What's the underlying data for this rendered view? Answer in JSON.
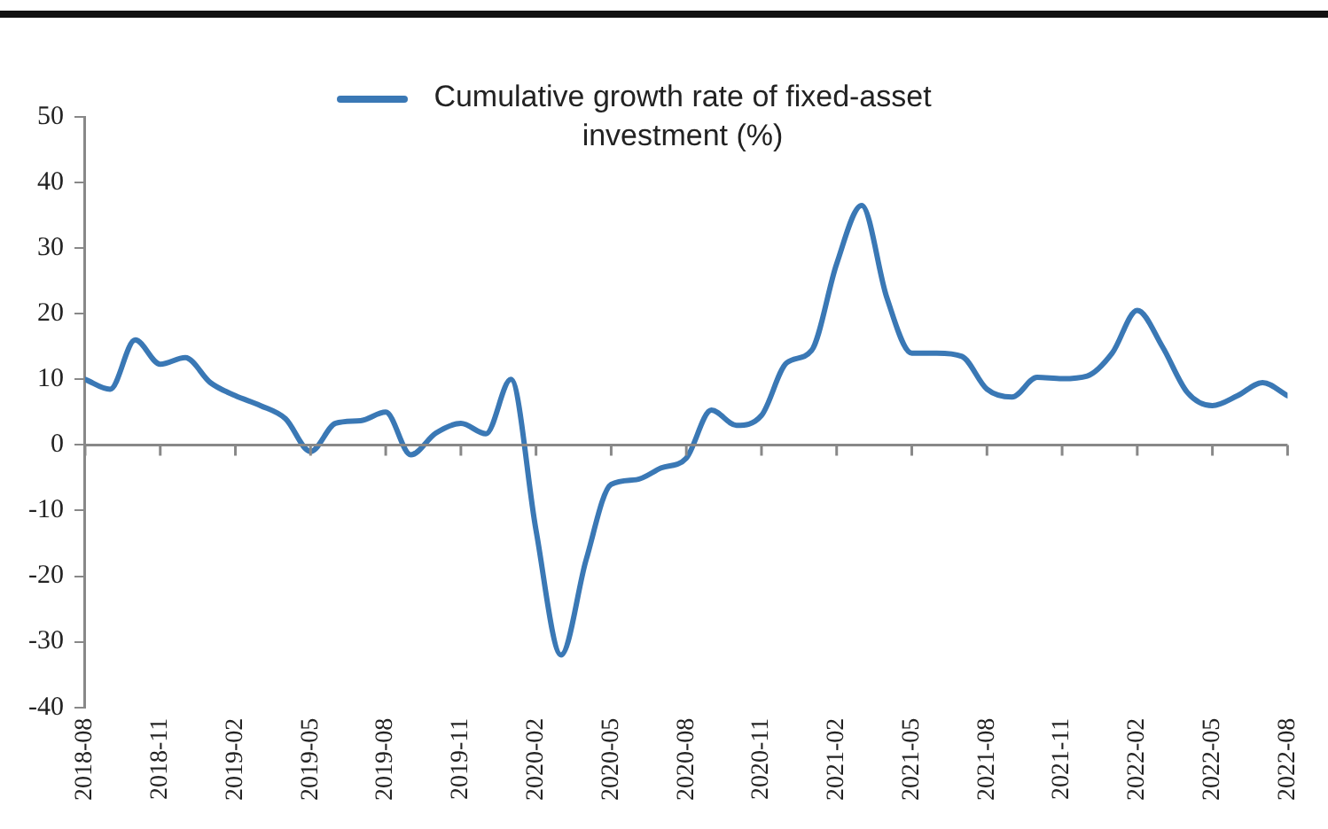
{
  "chart_data": {
    "type": "line",
    "legend": "top",
    "marker": "none",
    "line_style": "solid",
    "grid": false,
    "x": [
      "2018-08",
      "2018-09",
      "2018-10",
      "2018-11",
      "2018-12",
      "2019-01",
      "2019-02",
      "2019-03",
      "2019-04",
      "2019-05",
      "2019-06",
      "2019-07",
      "2019-08",
      "2019-09",
      "2019-10",
      "2019-11",
      "2019-12",
      "2020-01",
      "2020-02",
      "2020-03",
      "2020-04",
      "2020-05",
      "2020-06",
      "2020-07",
      "2020-08",
      "2020-09",
      "2020-10",
      "2020-11",
      "2020-12",
      "2021-01",
      "2021-02",
      "2021-03",
      "2021-04",
      "2021-05",
      "2021-06",
      "2021-07",
      "2021-08",
      "2021-09",
      "2021-10",
      "2021-11",
      "2021-12",
      "2022-01",
      "2022-02",
      "2022-03",
      "2022-04",
      "2022-05",
      "2022-06",
      "2022-07",
      "2022-08"
    ],
    "series": [
      {
        "name": "Cumulative growth rate of fixed-asset investment (%)",
        "color": "#3a78b5",
        "values": [
          10,
          8.5,
          16,
          12.3,
          13.3,
          9.5,
          7.5,
          6,
          4,
          -1,
          3.3,
          3.7,
          5,
          -1.5,
          1.8,
          3.3,
          1.7,
          10,
          -13,
          -32,
          -17.5,
          -6,
          -5.3,
          -3.5,
          -2,
          5.3,
          3,
          4.5,
          12.5,
          14.4,
          27.6,
          36.5,
          22.5,
          14,
          14,
          13.5,
          8.5,
          7.3,
          10.3,
          10.1,
          10.5,
          14,
          20.5,
          15,
          8,
          6,
          7.5,
          9.5,
          7.5
        ]
      }
    ],
    "ref_lines": [
      {
        "axis": "y",
        "value": 0,
        "color": "#888888"
      }
    ],
    "ylim": [
      -40,
      50
    ],
    "yticks": [
      -40,
      -30,
      -20,
      -10,
      0,
      10,
      20,
      30,
      40,
      50
    ],
    "xlim": [
      "2018-08",
      "2022-08"
    ],
    "xticks": [
      "2018-08",
      "2018-11",
      "2019-02",
      "2019-05",
      "2019-08",
      "2019-11",
      "2020-02",
      "2020-05",
      "2020-08",
      "2020-11",
      "2021-02",
      "2021-05",
      "2021-08",
      "2021-11",
      "2022-02",
      "2022-05",
      "2022-08"
    ]
  }
}
